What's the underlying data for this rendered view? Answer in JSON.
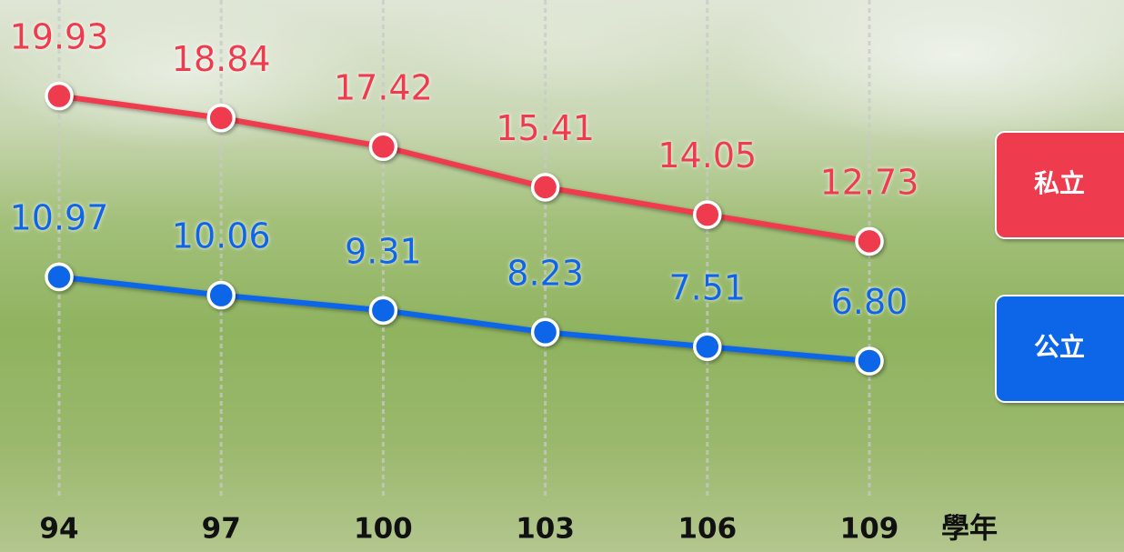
{
  "chart_data": {
    "type": "line",
    "categories": [
      "94",
      "97",
      "100",
      "103",
      "106",
      "109"
    ],
    "x_label": "學年",
    "series": [
      {
        "name": "私立",
        "color": "#ee3b4e",
        "values": [
          19.93,
          18.84,
          17.42,
          15.41,
          14.05,
          12.73
        ]
      },
      {
        "name": "公立",
        "color": "#0a66e8",
        "values": [
          10.97,
          10.06,
          9.31,
          8.23,
          7.51,
          6.8
        ],
        "value_labels": [
          "10.97",
          "10.06",
          "9.31",
          "8.23",
          "7.51",
          "6.80"
        ]
      }
    ],
    "grid": true
  }
}
